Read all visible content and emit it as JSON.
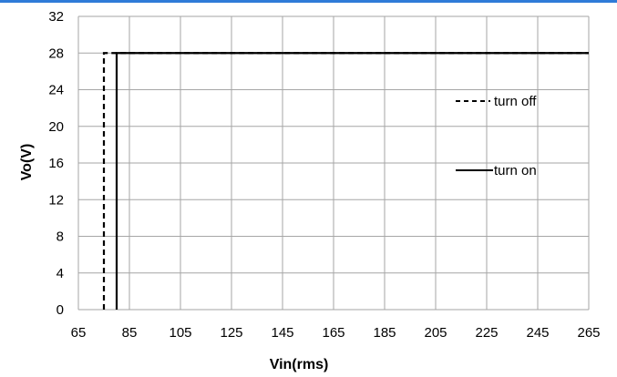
{
  "chart_data": {
    "type": "line",
    "title": "",
    "xlabel": "Vin(rms)",
    "ylabel": "Vo(V)",
    "xlim": [
      65,
      265
    ],
    "ylim": [
      0,
      32
    ],
    "x_ticks": [
      65,
      85,
      105,
      125,
      145,
      165,
      185,
      205,
      225,
      245,
      265
    ],
    "y_ticks": [
      0,
      4,
      8,
      12,
      16,
      20,
      24,
      28,
      32
    ],
    "grid": true,
    "legend_position": "right",
    "series": [
      {
        "name": "turn off",
        "style": "dashed",
        "color": "#000000",
        "points": [
          [
            75,
            0
          ],
          [
            75,
            28
          ],
          [
            265,
            28
          ]
        ]
      },
      {
        "name": "turn on",
        "style": "solid",
        "color": "#000000",
        "points": [
          [
            80,
            0
          ],
          [
            80,
            28
          ],
          [
            265,
            28
          ]
        ]
      }
    ]
  }
}
